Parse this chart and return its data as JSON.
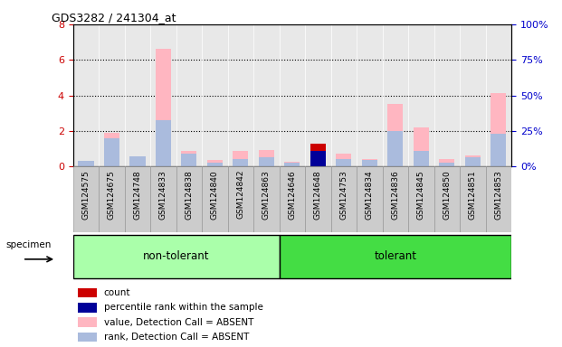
{
  "title": "GDS3282 / 241304_at",
  "samples": [
    "GSM124575",
    "GSM124675",
    "GSM124748",
    "GSM124833",
    "GSM124838",
    "GSM124840",
    "GSM124842",
    "GSM124863",
    "GSM124646",
    "GSM124648",
    "GSM124753",
    "GSM124834",
    "GSM124836",
    "GSM124845",
    "GSM124850",
    "GSM124851",
    "GSM124853"
  ],
  "groups": {
    "non-tolerant": [
      0,
      1,
      2,
      3,
      4,
      5,
      6,
      7
    ],
    "tolerant": [
      8,
      9,
      10,
      11,
      12,
      13,
      14,
      15,
      16
    ]
  },
  "group_colors": {
    "non-tolerant": "#aaffaa",
    "tolerant": "#44dd44"
  },
  "value_absent": [
    0.3,
    1.9,
    0.6,
    6.6,
    0.9,
    0.35,
    0.9,
    0.95,
    0.25,
    0.0,
    0.75,
    0.4,
    3.5,
    2.2,
    0.4,
    0.65,
    4.15
  ],
  "rank_absent": [
    0.3,
    1.6,
    0.6,
    2.6,
    0.75,
    0.2,
    0.4,
    0.5,
    0.2,
    0.0,
    0.4,
    0.35,
    2.0,
    0.9,
    0.2,
    0.5,
    1.85
  ],
  "count": [
    0.0,
    0.0,
    0.0,
    0.0,
    0.0,
    0.0,
    0.0,
    0.0,
    0.0,
    1.3,
    0.0,
    0.0,
    0.0,
    0.0,
    0.0,
    0.0,
    0.0
  ],
  "pct_rank": [
    0.0,
    0.0,
    0.0,
    0.0,
    0.0,
    0.0,
    0.0,
    0.0,
    0.0,
    0.9,
    0.0,
    0.0,
    0.0,
    0.0,
    0.0,
    0.0,
    0.0
  ],
  "color_value_absent": "#FFB6C1",
  "color_rank_absent": "#AABBDD",
  "color_count": "#CC0000",
  "color_pct_rank": "#000099",
  "ylim_left": [
    0,
    8
  ],
  "ylim_right": [
    0,
    100
  ],
  "yticks_left": [
    0,
    2,
    4,
    6,
    8
  ],
  "yticks_right": [
    0,
    25,
    50,
    75,
    100
  ],
  "ylabel_left_color": "#CC0000",
  "ylabel_right_color": "#0000CC",
  "bar_width": 0.6,
  "bg_plot": "#e8e8e8",
  "bg_xtick": "#cccccc"
}
